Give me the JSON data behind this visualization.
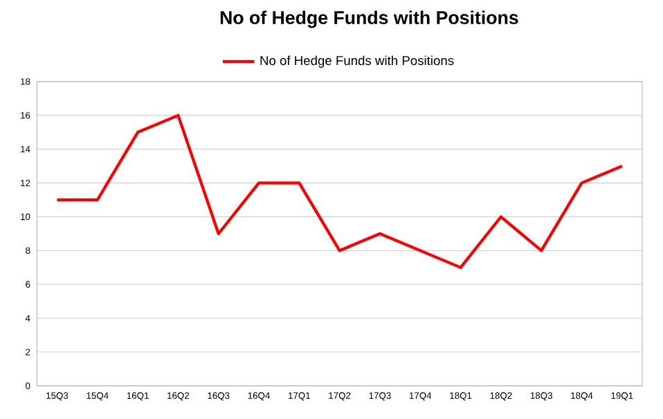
{
  "chart_data": {
    "type": "line",
    "title": "No of Hedge Funds with Positions",
    "categories": [
      "15Q3",
      "15Q4",
      "16Q1",
      "16Q2",
      "16Q3",
      "16Q4",
      "17Q1",
      "17Q2",
      "17Q3",
      "17Q4",
      "18Q1",
      "18Q2",
      "18Q3",
      "18Q4",
      "19Q1"
    ],
    "series": [
      {
        "name": "No of Hedge Funds with Positions",
        "color": "#ff0000",
        "values": [
          11,
          11,
          15,
          16,
          9,
          12,
          12,
          8,
          9,
          8,
          7,
          10,
          8,
          12,
          13
        ]
      }
    ],
    "ylim": [
      0,
      18
    ],
    "yticks": [
      0,
      2,
      4,
      6,
      8,
      10,
      12,
      14,
      16,
      18
    ],
    "grid": "y",
    "legend": "top"
  }
}
